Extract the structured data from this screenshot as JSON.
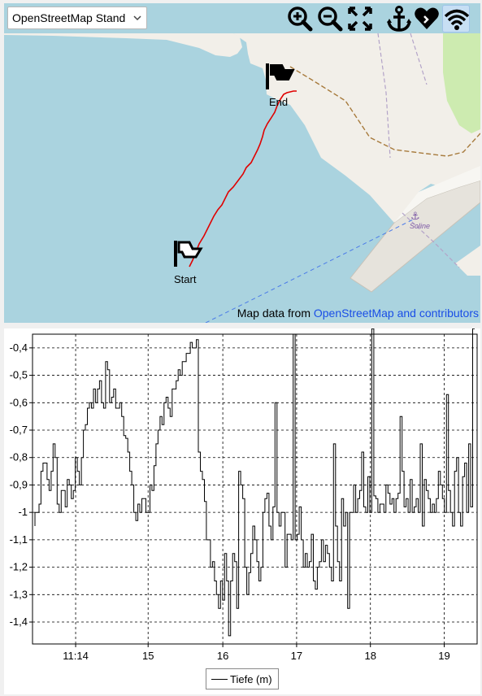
{
  "map": {
    "layer_select": {
      "value": "OpenStreetMap Stand"
    },
    "toolbar": {
      "zoom_in": "zoom-in-icon",
      "zoom_out": "zoom-out-icon",
      "fit": "fit-to-screen-icon",
      "anchor": "anchor-icon",
      "favorite": "heart-icon",
      "wifi": "wifi-icon"
    },
    "start_label": "Start",
    "end_label": "End",
    "place_label": "Soline",
    "attribution": {
      "text": "Map data from ",
      "link": "OpenStreetMap and contributors"
    },
    "colors": {
      "water": "#aad3df",
      "land": "#f2efe9",
      "track": "#e00000",
      "park": "#cdebb0",
      "pier": "#e6e3dc",
      "ferry_line": "#4a7ae8"
    }
  },
  "chart_data": {
    "type": "line",
    "xlabel": "",
    "ylabel": "",
    "x_ticks": [
      "11:14",
      "15",
      "16",
      "17",
      "18",
      "19"
    ],
    "y_ticks": [
      "-0,4",
      "-0,5",
      "-0,6",
      "-0,7",
      "-0,8",
      "-0,9",
      "-1",
      "-1,1",
      "-1,2",
      "-1,3",
      "-1,4"
    ],
    "ylim": [
      -1.48,
      -0.35
    ],
    "grid": true,
    "legend_position": "bottom-center",
    "series": [
      {
        "name": "Tiefe (m)",
        "color": "#000000",
        "values": [
          -1.05,
          -1.0,
          -1.0,
          -0.97,
          -0.85,
          -0.82,
          -0.82,
          -0.88,
          -0.92,
          -0.85,
          -0.75,
          -0.8,
          -0.97,
          -1.0,
          -0.92,
          -0.92,
          -0.98,
          -0.88,
          -0.9,
          -0.95,
          -0.92,
          -0.8,
          -0.85,
          -0.9,
          -0.8,
          -0.7,
          -0.68,
          -0.62,
          -0.6,
          -0.62,
          -0.55,
          -0.6,
          -0.55,
          -0.52,
          -0.6,
          -0.62,
          -0.45,
          -0.48,
          -0.6,
          -0.58,
          -0.55,
          -0.62,
          -0.62,
          -0.6,
          -0.65,
          -0.72,
          -0.73,
          -0.78,
          -0.85,
          -0.9,
          -1.0,
          -1.03,
          -0.97,
          -1.0,
          -0.95,
          -0.95,
          -1.0,
          -1.0,
          -0.9,
          -0.92,
          -0.83,
          -0.75,
          -0.7,
          -0.65,
          -0.68,
          -0.6,
          -0.58,
          -0.62,
          -0.65,
          -0.55,
          -0.55,
          -0.52,
          -0.48,
          -0.5,
          -0.45,
          -0.45,
          -0.42,
          -0.42,
          -0.38,
          -0.4,
          -0.4,
          -0.37,
          -0.78,
          -0.85,
          -0.88,
          -0.96,
          -1.1,
          -1.1,
          -1.2,
          -1.18,
          -1.25,
          -1.3,
          -1.35,
          -1.25,
          -1.32,
          -1.15,
          -1.25,
          -1.45,
          -1.25,
          -1.15,
          -1.18,
          -1.35,
          -0.85,
          -0.9,
          -0.95,
          -1.2,
          -1.3,
          -1.22,
          -1.15,
          -1.05,
          -1.1,
          -1.18,
          -1.25,
          -1.2,
          -1.0,
          -0.95,
          -0.93,
          -1.05,
          -1.1,
          -0.98,
          -0.6,
          -1.0,
          -1.05,
          -1.0,
          -1.0,
          -1.2,
          -1.08,
          -1.08,
          -1.1,
          -0.35,
          -1.1,
          -1.08,
          -0.98,
          -1.1,
          -1.2,
          -1.15,
          -1.2,
          -1.18,
          -1.08,
          -1.25,
          -1.28,
          -1.2,
          -1.18,
          -1.1,
          -1.18,
          -1.12,
          -1.15,
          -1.2,
          -1.25,
          -0.75,
          -1.05,
          -1.18,
          -1.25,
          -0.95,
          -1.05,
          -1.0,
          -1.35,
          -1.0,
          -1.0,
          -0.9,
          -1.0,
          -0.95,
          -0.92,
          -0.78,
          -0.98,
          -1.0,
          -0.87,
          -1.0,
          -0.33,
          -0.94,
          -0.95,
          -1.0,
          -0.97,
          -0.97,
          -1.0,
          -0.9,
          -0.93,
          -0.97,
          -0.95,
          -1.0,
          -0.95,
          -0.93,
          -0.65,
          -0.85,
          -0.98,
          -0.95,
          -1.0,
          -0.88,
          -1.0,
          -0.98,
          -0.95,
          -1.0,
          -0.75,
          -1.05,
          -0.88,
          -0.92,
          -0.95,
          -1.0,
          -0.97,
          -1.0,
          -0.95,
          -0.85,
          -0.9,
          -0.95,
          -1.0,
          -0.57,
          -0.92,
          -1.0,
          -1.05,
          -0.85,
          -0.8,
          -1.0,
          -1.05,
          -0.87,
          -0.82,
          -1.0,
          -0.75,
          -0.98,
          -0.33
        ]
      }
    ]
  }
}
